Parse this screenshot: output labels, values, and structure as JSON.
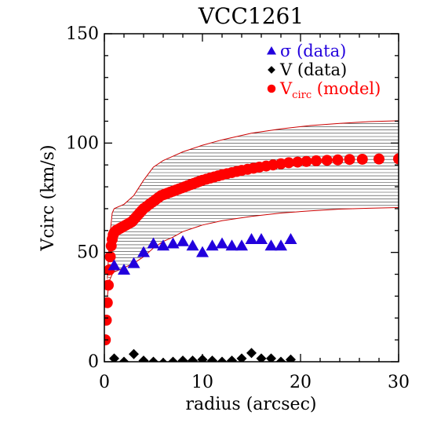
{
  "chart_data": {
    "type": "scatter",
    "title": "VCC1261",
    "xlabel": "radius (arcsec)",
    "ylabel": "Vcirc (km/s)",
    "xlim": [
      0,
      30
    ],
    "ylim": [
      0,
      150
    ],
    "x_ticks": [
      "0",
      "10",
      "20",
      "30"
    ],
    "y_ticks": [
      "0",
      "50",
      "100",
      "150"
    ],
    "grid": false,
    "legend_position": "top-right",
    "colors": {
      "sigma": "#2200dd",
      "v": "#000000",
      "vcirc": "#ff0000",
      "band": "#cc0000",
      "hatch": "#333333"
    },
    "legend": [
      {
        "marker": "triangle",
        "symbol": "σ",
        "label": " (data)",
        "color": "#2200dd"
      },
      {
        "marker": "diamond",
        "symbol": "V",
        "label": " (data)",
        "color": "#000000"
      },
      {
        "marker": "circle",
        "symbol": "V",
        "subscript": "circ",
        "label": " (model)",
        "color": "#ff0000"
      }
    ],
    "series": [
      {
        "name": "σ (data)",
        "marker": "triangle",
        "color": "#2200dd",
        "x": [
          1,
          2,
          3,
          4,
          5,
          6,
          7,
          8,
          9,
          10,
          11,
          12,
          13,
          14,
          15,
          16,
          17,
          18,
          19
        ],
        "y": [
          44,
          42,
          45,
          50,
          54,
          53,
          54,
          55,
          53,
          50,
          53,
          54,
          53,
          53,
          56,
          56,
          53,
          53,
          56
        ]
      },
      {
        "name": "V (data)",
        "marker": "diamond",
        "color": "#000000",
        "x": [
          1,
          2,
          3,
          4,
          5,
          6,
          7,
          8,
          9,
          10,
          11,
          12,
          13,
          14,
          15,
          16,
          17,
          18,
          19
        ],
        "y": [
          1.5,
          0,
          3.5,
          0.5,
          0,
          -0.5,
          0,
          0.5,
          0.5,
          1,
          0.5,
          0,
          0.5,
          1.5,
          4,
          1.5,
          1.5,
          0,
          1
        ]
      },
      {
        "name": "Vcirc (model)",
        "marker": "circle",
        "color": "#ff0000",
        "x": [
          0.1,
          0.2,
          0.3,
          0.4,
          0.5,
          0.6,
          0.7,
          0.8,
          0.9,
          1.0,
          1.2,
          1.4,
          1.6,
          1.8,
          2.0,
          2.2,
          2.4,
          2.6,
          2.8,
          3.0,
          3.2,
          3.4,
          3.6,
          3.8,
          4.0,
          4.3,
          4.6,
          4.9,
          5.2,
          5.5,
          5.8,
          6.1,
          6.4,
          6.7,
          7.0,
          7.3,
          7.6,
          7.9,
          8.2,
          8.5,
          8.8,
          9.1,
          9.4,
          9.7,
          10.0,
          10.4,
          10.8,
          11.2,
          11.6,
          12.0,
          12.5,
          13.0,
          13.5,
          14.0,
          14.6,
          15.2,
          15.8,
          16.5,
          17.2,
          18.0,
          18.8,
          19.7,
          20.6,
          21.6,
          22.7,
          23.8,
          25.0,
          26.3,
          28.0,
          30.0
        ],
        "y": [
          10,
          19,
          27,
          35,
          42,
          48,
          53,
          56,
          58,
          59,
          60,
          60.5,
          61,
          61.5,
          62,
          62.5,
          63,
          63.5,
          64,
          65,
          66,
          67,
          68,
          69,
          70,
          71,
          72,
          73,
          74,
          75,
          76,
          76.5,
          77,
          77.5,
          78,
          78.5,
          79,
          79.5,
          80,
          80.5,
          81,
          81.5,
          82,
          82.5,
          83,
          83.5,
          84,
          84.5,
          85,
          85.5,
          86,
          86.5,
          87,
          87.5,
          88,
          88.5,
          89,
          89.5,
          90,
          90.5,
          91,
          91.3,
          91.6,
          91.9,
          92.1,
          92.3,
          92.5,
          92.6,
          92.7,
          92.8
        ]
      }
    ],
    "band": {
      "name": "Vcirc uncertainty band",
      "x": [
        0.3,
        0.5,
        0.8,
        1.0,
        1.5,
        2.0,
        3.0,
        4.0,
        5.0,
        6.0,
        7.0,
        8.0,
        10.0,
        12.0,
        15.0,
        18.0,
        21.0,
        24.0,
        27.0,
        30.0
      ],
      "upper": [
        38,
        55,
        68,
        70,
        71,
        72,
        76,
        83,
        89,
        92,
        94,
        96,
        99,
        101.5,
        104.5,
        106.5,
        108,
        109,
        109.8,
        110.2
      ],
      "lower": [
        30,
        37,
        40,
        41,
        42,
        43,
        45,
        48,
        52,
        55,
        57,
        59.5,
        62.5,
        64.5,
        66.5,
        68,
        69,
        69.8,
        70.2,
        70.5
      ]
    }
  }
}
